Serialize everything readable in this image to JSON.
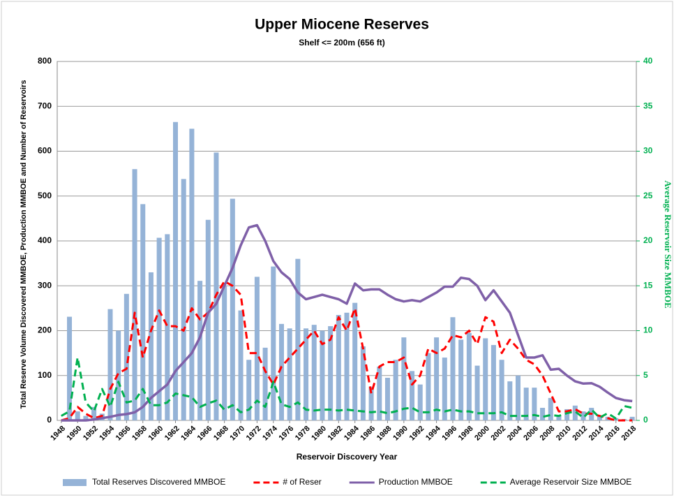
{
  "chart_data": {
    "type": "combo",
    "title": "Upper Miocene Reserves",
    "subtitle": "Shelf <= 200m (656 ft)",
    "x_label": "Reservoir Discovery Year",
    "y_label": "Total Reserve Volume Discovered MMBOE, Production MMBOE and Number of Reservoirs",
    "y2_label": "Average Reservoir Size MMBOE",
    "x": [
      1948,
      1949,
      1950,
      1951,
      1952,
      1953,
      1954,
      1955,
      1956,
      1957,
      1958,
      1959,
      1960,
      1961,
      1962,
      1963,
      1964,
      1965,
      1966,
      1967,
      1968,
      1969,
      1970,
      1971,
      1972,
      1973,
      1974,
      1975,
      1976,
      1977,
      1978,
      1979,
      1980,
      1981,
      1982,
      1983,
      1984,
      1985,
      1986,
      1987,
      1988,
      1989,
      1990,
      1991,
      1992,
      1993,
      1994,
      1995,
      1996,
      1997,
      1998,
      1999,
      2000,
      2001,
      2002,
      2003,
      2004,
      2005,
      2006,
      2007,
      2008,
      2009,
      2010,
      2011,
      2012,
      2013,
      2014,
      2015,
      2016,
      2017,
      2018
    ],
    "xlim": [
      1947.5,
      2018.5
    ],
    "xticks": [
      1948,
      1950,
      1952,
      1954,
      1956,
      1958,
      1960,
      1962,
      1964,
      1966,
      1968,
      1970,
      1972,
      1974,
      1976,
      1978,
      1980,
      1982,
      1984,
      1986,
      1988,
      1990,
      1992,
      1994,
      1996,
      1998,
      2000,
      2002,
      2004,
      2006,
      2008,
      2010,
      2012,
      2014,
      2016,
      2018
    ],
    "ylim": [
      0,
      800
    ],
    "yticks": [
      0,
      100,
      200,
      300,
      400,
      500,
      600,
      700,
      800
    ],
    "y2lim": [
      0,
      40
    ],
    "y2ticks": [
      0,
      5,
      10,
      15,
      20,
      25,
      30,
      35,
      40
    ],
    "y2_color": "#00b050",
    "grid": true,
    "series": [
      {
        "name": "Total Reserves Discovered MMBOE",
        "type": "bar",
        "color": "#95b3d7",
        "values": [
          0,
          231,
          20,
          10,
          30,
          15,
          248,
          200,
          282,
          560,
          482,
          330,
          407,
          415,
          665,
          538,
          650,
          311,
          447,
          597,
          300,
          494,
          245,
          135,
          320,
          162,
          343,
          215,
          205,
          360,
          205,
          213,
          200,
          210,
          235,
          240,
          262,
          165,
          75,
          120,
          95,
          135,
          185,
          110,
          80,
          150,
          185,
          140,
          230,
          180,
          195,
          122,
          183,
          168,
          135,
          87,
          100,
          73,
          73,
          28,
          50,
          10,
          25,
          33,
          20,
          28,
          10,
          8,
          5,
          3,
          8
        ]
      },
      {
        "name": "# of Reser",
        "type": "line",
        "dash": true,
        "color": "#ff0000",
        "values": [
          0,
          5,
          30,
          15,
          5,
          10,
          70,
          105,
          115,
          240,
          140,
          200,
          245,
          210,
          210,
          200,
          250,
          225,
          240,
          280,
          310,
          300,
          280,
          150,
          150,
          110,
          80,
          120,
          140,
          160,
          180,
          200,
          170,
          180,
          230,
          200,
          250,
          160,
          60,
          120,
          130,
          130,
          140,
          80,
          100,
          160,
          150,
          160,
          190,
          185,
          200,
          170,
          230,
          220,
          150,
          180,
          160,
          135,
          125,
          100,
          60,
          20,
          20,
          25,
          15,
          15,
          10,
          5,
          0,
          0,
          0
        ]
      },
      {
        "name": "Production MMBOE",
        "type": "line",
        "dash": false,
        "color": "#7f60a8",
        "values": [
          0,
          0,
          0,
          0,
          2,
          5,
          8,
          12,
          14,
          18,
          30,
          50,
          65,
          80,
          110,
          130,
          150,
          185,
          240,
          260,
          300,
          340,
          390,
          430,
          435,
          400,
          355,
          330,
          315,
          285,
          270,
          275,
          280,
          275,
          270,
          260,
          305,
          290,
          292,
          292,
          280,
          270,
          265,
          268,
          265,
          275,
          285,
          298,
          298,
          318,
          315,
          300,
          268,
          290,
          265,
          240,
          190,
          140,
          140,
          145,
          113,
          115,
          100,
          87,
          82,
          83,
          75,
          62,
          50,
          45,
          43
        ]
      },
      {
        "name": "Average Reservoir Size MMBOE",
        "type": "line",
        "dash": true,
        "axis": "y2",
        "color": "#00b050",
        "values": [
          0.5,
          1,
          7,
          2,
          1,
          3.5,
          1.5,
          4.3,
          2,
          2.2,
          3.5,
          1.7,
          1.7,
          2,
          3,
          2.8,
          2.6,
          1.5,
          1.9,
          2.2,
          1.2,
          1.7,
          0.9,
          1.2,
          2.2,
          1.5,
          4.3,
          1.8,
          1.5,
          2,
          1.2,
          1.1,
          1.2,
          1.2,
          1.1,
          1.2,
          1.1,
          1,
          0.9,
          1,
          0.8,
          1,
          1.3,
          1.4,
          0.9,
          0.9,
          1.2,
          1,
          1.2,
          1,
          1,
          0.8,
          0.8,
          0.8,
          0.9,
          0.5,
          0.5,
          0.5,
          0.6,
          0.4,
          0.6,
          0.5,
          0.8,
          1,
          0.3,
          1.2,
          0.3,
          0.8,
          0.2,
          1.6,
          1.4
        ]
      }
    ]
  }
}
